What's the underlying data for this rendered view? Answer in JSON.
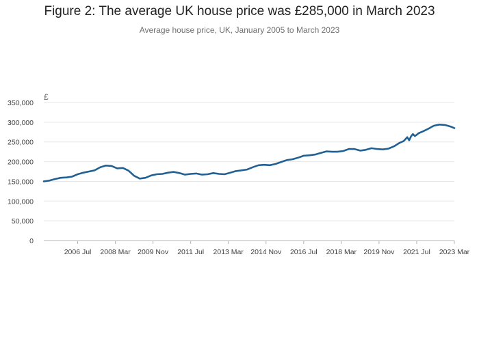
{
  "header": {
    "title": "Figure 2: The average UK house price was £285,000 in March 2023",
    "subtitle": "Average house price, UK, January 2005 to March 2023"
  },
  "chart_data": {
    "type": "line",
    "title": "Figure 2: The average UK house price was £285,000 in March 2023",
    "subtitle": "Average house price, UK, January 2005 to March 2023",
    "ylabel": "£",
    "xlabel": "",
    "xlim": [
      "2005-01",
      "2023-03"
    ],
    "ylim": [
      0,
      350000
    ],
    "grid": true,
    "legend": "none",
    "x_tick_labels": [
      "2006 Jul",
      "2008 Mar",
      "2009 Nov",
      "2011 Jul",
      "2013 Mar",
      "2014 Nov",
      "2016 Jul",
      "2018 Mar",
      "2019 Nov",
      "2021 Jul",
      "2023 Mar"
    ],
    "y_tick_labels": [
      "0",
      "50,000",
      "100,000",
      "150,000",
      "200,000",
      "250,000",
      "300,000",
      "350,000"
    ],
    "y_ticks": [
      0,
      50000,
      100000,
      150000,
      200000,
      250000,
      300000,
      350000
    ],
    "color": "#206095",
    "series": [
      {
        "x": [
          "2005-01",
          "2005-04",
          "2005-07",
          "2005-10",
          "2006-01",
          "2006-04",
          "2006-07",
          "2006-10",
          "2007-01",
          "2007-04",
          "2007-07",
          "2007-10",
          "2008-01",
          "2008-04",
          "2008-07",
          "2008-10",
          "2009-01",
          "2009-04",
          "2009-07",
          "2009-10",
          "2010-01",
          "2010-04",
          "2010-07",
          "2010-10",
          "2011-01",
          "2011-04",
          "2011-07",
          "2011-10",
          "2012-01",
          "2012-04",
          "2012-07",
          "2012-10",
          "2013-01",
          "2013-04",
          "2013-07",
          "2013-10",
          "2014-01",
          "2014-04",
          "2014-07",
          "2014-10",
          "2015-01",
          "2015-04",
          "2015-07",
          "2015-10",
          "2016-01",
          "2016-04",
          "2016-07",
          "2016-10",
          "2017-01",
          "2017-04",
          "2017-07",
          "2017-10",
          "2018-01",
          "2018-04",
          "2018-07",
          "2018-10",
          "2019-01",
          "2019-04",
          "2019-07",
          "2019-10",
          "2020-01",
          "2020-04",
          "2020-07",
          "2020-10",
          "2020-12",
          "2021-02",
          "2021-03",
          "2021-04",
          "2021-05",
          "2021-06",
          "2021-07",
          "2021-08",
          "2021-10",
          "2022-01",
          "2022-04",
          "2022-07",
          "2022-10",
          "2023-01",
          "2023-03"
        ],
        "values": [
          150000,
          152000,
          156000,
          159000,
          160000,
          162000,
          168000,
          172000,
          175000,
          178000,
          186000,
          190000,
          189000,
          183000,
          184000,
          177000,
          164000,
          157000,
          159000,
          165000,
          168000,
          169000,
          172000,
          174000,
          171000,
          167000,
          169000,
          170000,
          167000,
          168000,
          171000,
          169000,
          168000,
          172000,
          176000,
          178000,
          180000,
          186000,
          191000,
          192000,
          191000,
          194000,
          199000,
          204000,
          206000,
          210000,
          215000,
          216000,
          218000,
          222000,
          226000,
          225000,
          225000,
          227000,
          232000,
          232000,
          228000,
          230000,
          234000,
          232000,
          231000,
          233000,
          239000,
          248000,
          252000,
          262000,
          254000,
          264000,
          270000,
          265000,
          268000,
          272000,
          276000,
          283000,
          291000,
          294000,
          293000,
          289000,
          285000
        ]
      }
    ]
  }
}
